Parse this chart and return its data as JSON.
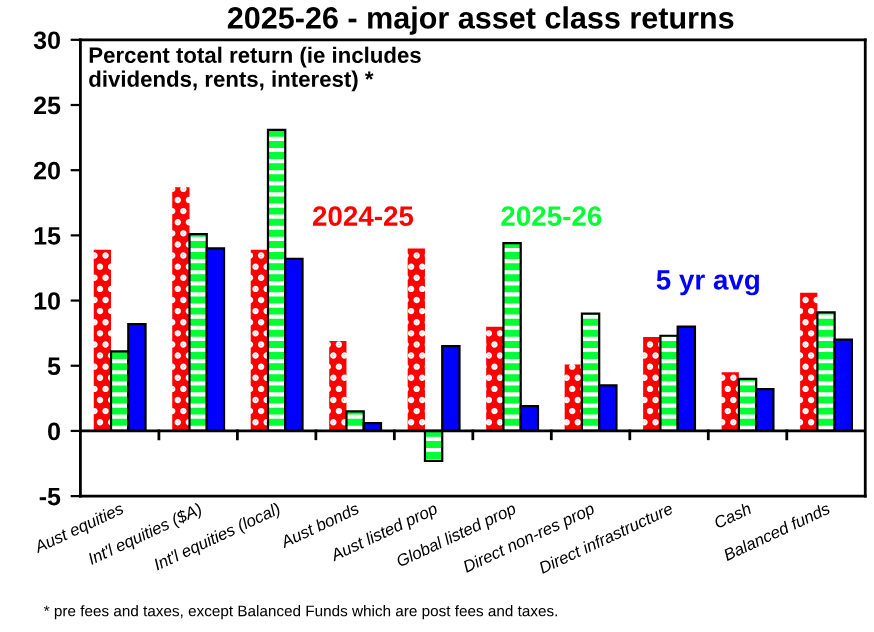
{
  "chart_data": {
    "type": "bar",
    "title": "2025-26 - major asset class returns",
    "subtitle": "Percent total return (ie includes\ndividends, rents, interest) *",
    "categories": [
      "Aust equities",
      "Int'l equities ($A)",
      "Int'l equities (local)",
      "Aust bonds",
      "Aust listed prop",
      "Global listed prop",
      "Direct non-res prop",
      "Direct infrastructure",
      "Cash",
      "Balanced funds"
    ],
    "series": [
      {
        "name": "2024-25",
        "color": "#ff0000",
        "values": [
          13.9,
          18.7,
          13.9,
          6.9,
          14.0,
          8.0,
          5.1,
          7.2,
          4.5,
          10.6
        ]
      },
      {
        "name": "2025-26",
        "color": "#00ff33",
        "values": [
          6.1,
          15.1,
          23.1,
          1.5,
          -2.3,
          14.4,
          9.0,
          7.3,
          4.0,
          9.1
        ]
      },
      {
        "name": "5 yr avg",
        "color": "#0000ff",
        "values": [
          8.2,
          14.0,
          13.2,
          0.6,
          6.5,
          1.9,
          3.5,
          8.0,
          3.2,
          7.0
        ]
      }
    ],
    "ylim": [
      -5,
      30
    ],
    "yticks": [
      -5,
      0,
      5,
      10,
      15,
      20,
      25,
      30
    ],
    "grid": false,
    "legend": false,
    "ref_lines": [
      {
        "axis": "y",
        "value": 0,
        "color": "#000000",
        "line_style": "solid"
      }
    ],
    "annotations": [
      "* pre fees and taxes, except Balanced Funds which are post fees and taxes."
    ]
  }
}
